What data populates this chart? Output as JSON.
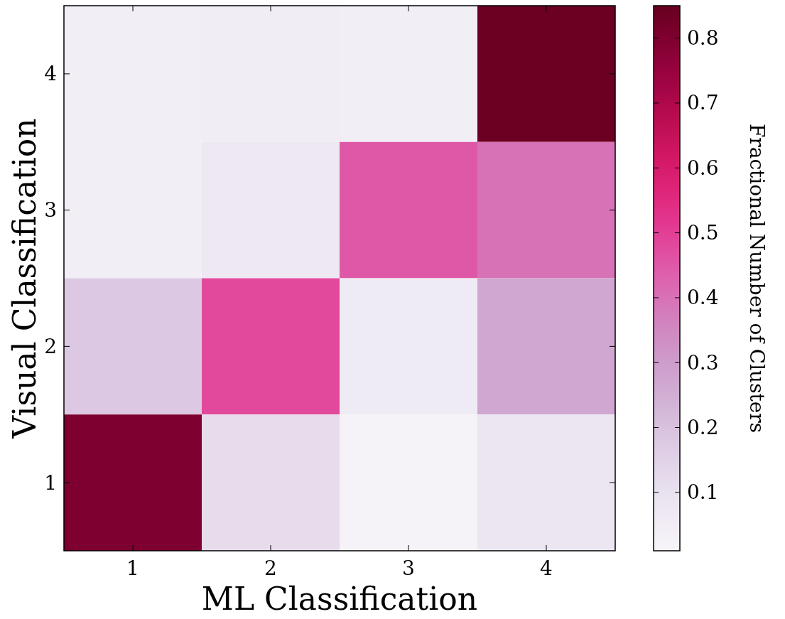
{
  "chart_data": {
    "type": "heatmap",
    "xlabel": "ML Classification",
    "ylabel": "Visual Classification",
    "clabel": "Fractional Number of Clusters",
    "categories": [
      "1",
      "2",
      "3",
      "4"
    ],
    "y_categories": [
      "4",
      "3",
      "2",
      "1"
    ],
    "cells": [
      [
        0.04,
        0.05,
        0.04,
        0.84
      ],
      [
        0.04,
        0.07,
        0.45,
        0.4
      ],
      [
        0.18,
        0.48,
        0.06,
        0.27
      ],
      [
        0.8,
        0.12,
        0.02,
        0.08
      ]
    ],
    "clim": [
      0.01,
      0.85
    ],
    "cticks": [
      0.1,
      0.2,
      0.3,
      0.4,
      0.5,
      0.6,
      0.7,
      0.8
    ]
  }
}
